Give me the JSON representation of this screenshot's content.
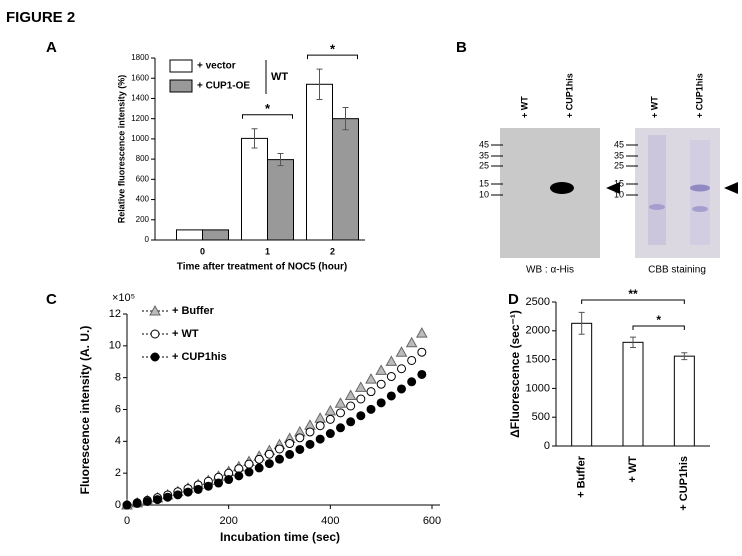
{
  "title": "FIGURE 2",
  "chart_data": [
    {
      "panel_label": "A",
      "type": "bar",
      "categories": [
        "0",
        "1",
        "2"
      ],
      "series": [
        {
          "name": "+ vector",
          "color": "#ffffff",
          "values": [
            100,
            1005,
            1540
          ],
          "errors": [
            null,
            95,
            150
          ]
        },
        {
          "name": "+ CUP1-OE",
          "color": "#999999",
          "values": [
            100,
            795,
            1200
          ],
          "errors": [
            null,
            60,
            110
          ]
        }
      ],
      "legend_group": "WT",
      "annotations": [
        "*",
        "*"
      ],
      "ylim": [
        0,
        1800
      ],
      "yticks": [
        0,
        200,
        400,
        600,
        800,
        1000,
        1200,
        1400,
        1600,
        1800
      ],
      "xlabel": "Time after treatment of NOC5 (hour)",
      "ylabel": "Relative fluorescence intensity (%)"
    },
    {
      "panel_label": "C",
      "type": "line",
      "axis_multiplier": "×10⁵",
      "x": [
        0,
        20,
        40,
        60,
        80,
        100,
        120,
        140,
        160,
        180,
        200,
        220,
        240,
        260,
        280,
        300,
        320,
        340,
        360,
        380,
        400,
        420,
        440,
        460,
        480,
        500,
        520,
        540,
        560,
        580
      ],
      "series": [
        {
          "name": "+ Buffer",
          "color": "#bbbbbb",
          "marker": "triangle",
          "values": [
            0,
            0.13,
            0.28,
            0.45,
            0.64,
            0.84,
            1.06,
            1.29,
            1.54,
            1.81,
            2.1,
            2.4,
            2.73,
            3.06,
            3.42,
            3.79,
            4.18,
            4.59,
            5.01,
            5.45,
            5.91,
            6.39,
            6.88,
            7.39,
            7.91,
            8.46,
            9.02,
            9.6,
            10.19,
            10.8
          ]
        },
        {
          "name": "+ WT",
          "color": "#ffffff",
          "marker": "circle",
          "values": [
            0,
            0.14,
            0.29,
            0.46,
            0.63,
            0.83,
            1.03,
            1.26,
            1.49,
            1.74,
            2.0,
            2.28,
            2.57,
            2.87,
            3.19,
            3.52,
            3.86,
            4.22,
            4.59,
            4.98,
            5.38,
            5.79,
            6.22,
            6.66,
            7.12,
            7.59,
            8.07,
            8.56,
            9.08,
            9.6
          ]
        },
        {
          "name": "+ CUP1his",
          "color": "#000000",
          "marker": "circle",
          "values": [
            0,
            0.1,
            0.22,
            0.34,
            0.49,
            0.64,
            0.81,
            0.98,
            1.18,
            1.38,
            1.6,
            1.83,
            2.07,
            2.33,
            2.6,
            2.88,
            3.18,
            3.49,
            3.81,
            4.14,
            4.49,
            4.85,
            5.23,
            5.61,
            6.01,
            6.42,
            6.85,
            7.29,
            7.74,
            8.2
          ]
        }
      ],
      "xlim": [
        0,
        600
      ],
      "xticks": [
        0,
        200,
        400,
        600
      ],
      "ylim": [
        0,
        12
      ],
      "yticks": [
        0,
        2,
        4,
        6,
        8,
        10,
        12
      ],
      "xlabel": "Incubation time (sec)",
      "ylabel": "Fluorescence intensity (A. U.)"
    },
    {
      "panel_label": "D",
      "type": "bar",
      "categories": [
        "+ Buffer",
        "+ WT",
        "+ CUP1his"
      ],
      "values": [
        2130,
        1800,
        1560
      ],
      "errors": [
        190,
        90,
        60
      ],
      "color": "#ffffff",
      "annotations": [
        "**",
        "*"
      ],
      "ylim": [
        0,
        2500
      ],
      "yticks": [
        0,
        500,
        1000,
        1500,
        2000,
        2500
      ],
      "ylabel": "ΔFluorescence (sec⁻¹)"
    }
  ],
  "blots": {
    "panel_label": "B",
    "lanes": [
      "+ WT",
      "+ CUP1his"
    ],
    "markers": [
      "45",
      "35",
      "25",
      "15",
      "10"
    ],
    "captions": [
      "WB : α-His",
      "CBB staining"
    ]
  }
}
